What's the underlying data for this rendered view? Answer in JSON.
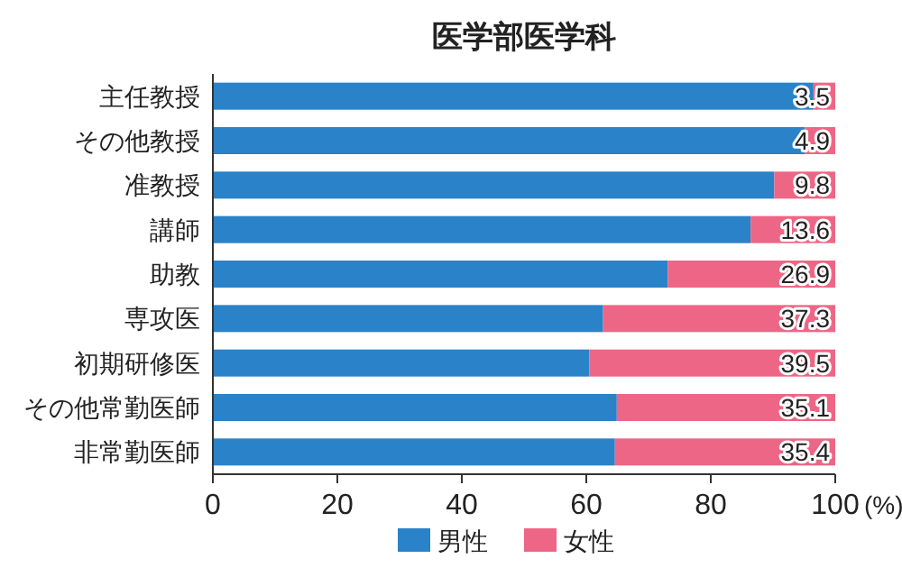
{
  "chart_data": {
    "type": "bar",
    "orientation": "horizontal",
    "stacked": true,
    "title": "医学部医学科",
    "categories": [
      "主任教授",
      "その他教授",
      "准教授",
      "講師",
      "助教",
      "専攻医",
      "初期研修医",
      "その他常勤医師",
      "非常勤医師"
    ],
    "series": [
      {
        "name": "男性",
        "color": "#2a82c9",
        "values": [
          96.5,
          95.1,
          90.2,
          86.4,
          73.1,
          62.7,
          60.5,
          64.9,
          64.6
        ]
      },
      {
        "name": "女性",
        "color": "#ee6685",
        "values": [
          3.5,
          4.9,
          9.8,
          13.6,
          26.9,
          37.3,
          39.5,
          35.1,
          35.4
        ],
        "value_labels": [
          "3.5",
          "4.9",
          "9.8",
          "13.6",
          "26.9",
          "37.3",
          "39.5",
          "35.1",
          "35.4"
        ]
      }
    ],
    "xlim": [
      0,
      100
    ],
    "xticks": [
      0,
      20,
      40,
      60,
      80,
      100
    ],
    "xlabel": "(%)",
    "legend": "bottom",
    "grid": false
  }
}
